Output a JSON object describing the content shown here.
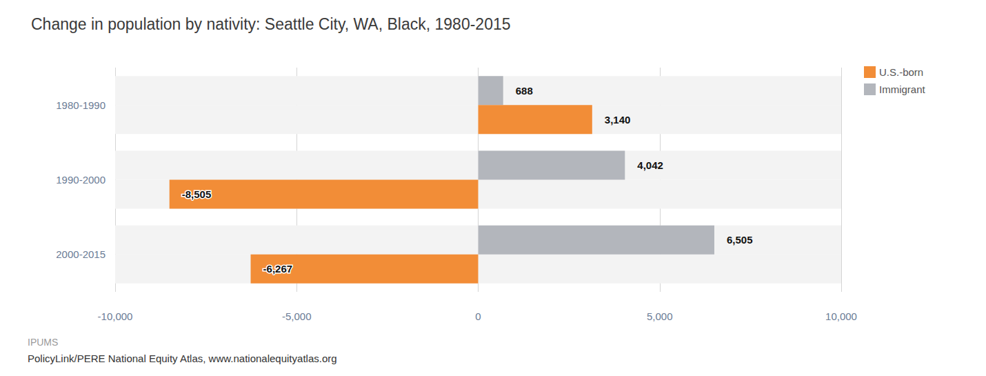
{
  "chart_data": {
    "type": "bar",
    "title": "Change in population by nativity: Seattle City, WA, Black, 1980-2015",
    "orientation": "horizontal",
    "categories": [
      "1980-1990",
      "1990-2000",
      "2000-2015"
    ],
    "series": [
      {
        "name": "U.S.-born",
        "color": "#f28d37",
        "values": [
          3140,
          -8505,
          -6267
        ],
        "value_labels": [
          "3,140",
          "-8,505",
          "-6,267"
        ]
      },
      {
        "name": "Immigrant",
        "color": "#b3b6bc",
        "values": [
          688,
          4042,
          6505
        ],
        "value_labels": [
          "688",
          "4,042",
          "6,505"
        ]
      }
    ],
    "xlim": [
      -10000,
      10000
    ],
    "xticks": [
      {
        "value": -10000,
        "label": "-10,000"
      },
      {
        "value": -5000,
        "label": "-5,000"
      },
      0,
      {
        "value": 5000,
        "label": "5,000"
      },
      {
        "value": 10000,
        "label": "10,000"
      }
    ],
    "grid": true,
    "legend": "upper right",
    "data_labels": true,
    "source": [
      "IPUMS",
      "PolicyLink/PERE National Equity Atlas, www.nationalequityatlas.org"
    ]
  }
}
